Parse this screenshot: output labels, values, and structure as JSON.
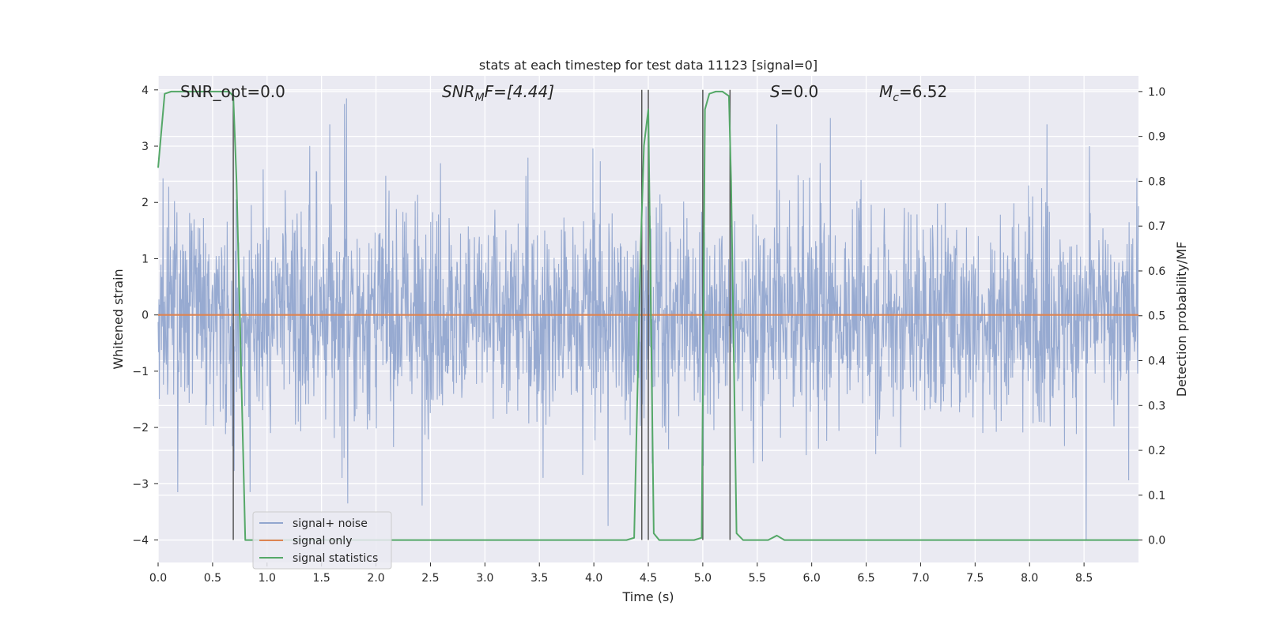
{
  "chart_data": {
    "type": "line",
    "title": "stats at each timestep for test data 11123 [signal=0]",
    "xlabel": "Time (s)",
    "ylabel_left": "Whitened strain",
    "ylabel_right": "Detection probability/MF",
    "xlim": [
      0.0,
      9.0
    ],
    "ylim_left": [
      -4.4,
      4.25
    ],
    "ylim_right": [
      -0.05,
      1.035
    ],
    "xticks": [
      "0.0",
      "0.5",
      "1.0",
      "1.5",
      "2.0",
      "2.5",
      "3.0",
      "3.5",
      "4.0",
      "4.5",
      "5.0",
      "5.5",
      "6.0",
      "6.5",
      "7.0",
      "7.5",
      "8.0",
      "8.5"
    ],
    "yticks_left": [
      "4",
      "3",
      "2",
      "1",
      "0",
      "−1",
      "−2",
      "−3",
      "−4"
    ],
    "yticks_right": [
      "1.0",
      "0.9",
      "0.8",
      "0.7",
      "0.6",
      "0.5",
      "0.4",
      "0.3",
      "0.2",
      "0.1",
      "0.0"
    ],
    "grid": true,
    "legend_position": "lower-left",
    "annotations": {
      "snr_opt": "SNR_opt=0.0",
      "snr_mf_main": "SNR",
      "snr_mf_sub": "M",
      "snr_mf_rest": "F=[4.44]",
      "s_main": "S",
      "s_rest": "=0.0",
      "mc_main": "M",
      "mc_sub": "c",
      "mc_rest": "=6.52"
    },
    "series": [
      {
        "name": "signal+ noise",
        "axis": "left",
        "color": "#92a6cf",
        "style": "dense noise, approx. unit variance, peaks near ±3.5",
        "amplitude_envelope": {
          "typical": 1.5,
          "peak_max": 3.85,
          "peak_min": -3.75
        },
        "notable_peaks": [
          {
            "x": 1.71,
            "y": 3.75
          },
          {
            "x": 1.73,
            "y": 3.85
          },
          {
            "x": 6.17,
            "y": 3.5
          },
          {
            "x": 8.55,
            "y": 3.0
          },
          {
            "x": 4.13,
            "y": -3.75
          },
          {
            "x": 8.52,
            "y": -4.0
          },
          {
            "x": 1.74,
            "y": -3.35
          },
          {
            "x": 0.18,
            "y": -3.15
          }
        ]
      },
      {
        "name": "signal only",
        "axis": "left",
        "color": "#dd8452",
        "x": [
          0.0,
          9.0
        ],
        "y": [
          0.0,
          0.0
        ]
      },
      {
        "name": "signal statistics",
        "axis": "right",
        "color": "#55a868",
        "x": [
          0.0,
          0.06,
          0.12,
          0.65,
          0.69,
          0.72,
          0.8,
          0.85,
          4.3,
          4.37,
          4.43,
          4.46,
          4.5,
          4.55,
          4.6,
          4.92,
          4.99,
          5.02,
          5.06,
          5.12,
          5.18,
          5.24,
          5.26,
          5.31,
          5.37,
          5.6,
          5.68,
          5.75,
          9.0
        ],
        "y": [
          0.83,
          0.995,
          1.0,
          1.0,
          0.99,
          0.8,
          0.0,
          0.0,
          0.0,
          0.005,
          0.65,
          0.88,
          0.96,
          0.015,
          0.0,
          0.0,
          0.005,
          0.96,
          0.995,
          1.0,
          1.0,
          0.99,
          0.8,
          0.015,
          0.0,
          0.0,
          0.01,
          0.0,
          0.0
        ]
      }
    ],
    "vertical_markers": {
      "color": "#555555",
      "lines": [
        {
          "x": 0.69,
          "y0": -4.0,
          "y1": 4.0
        },
        {
          "x": 4.44,
          "y0": -4.0,
          "y1": 4.0
        },
        {
          "x": 4.5,
          "y0": -4.0,
          "y1": 4.0
        },
        {
          "x": 5.0,
          "y0": -4.0,
          "y1": 4.0
        },
        {
          "x": 5.25,
          "y0": -4.0,
          "y1": 4.0
        }
      ]
    }
  },
  "colors": {
    "plot_background": "#eaeaf2",
    "grid": "#ffffff",
    "legend_background": "#eaeaf2",
    "legend_border": "#cccccc"
  }
}
